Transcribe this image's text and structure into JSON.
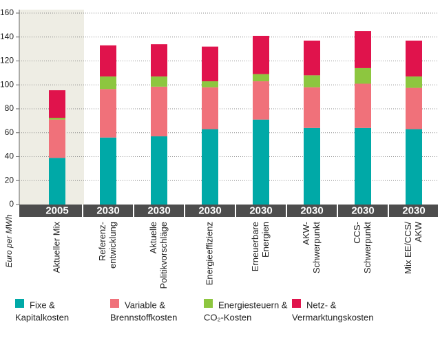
{
  "chart_data": {
    "type": "stacked_bar",
    "y_axis_label": "Euro per MWh",
    "years": [
      "2005",
      "2030",
      "2030",
      "2030",
      "2030",
      "2030",
      "2030",
      "2030"
    ],
    "categories": [
      [
        "Aktueller Mix"
      ],
      [
        "Referenz-",
        "entwicklung"
      ],
      [
        "Aktuelle",
        "Politikvorschläge"
      ],
      [
        "Energieeffizienz"
      ],
      [
        "Erneuerbare",
        "Energien"
      ],
      [
        "AKW-",
        "Schwerpunkt"
      ],
      [
        "CCS-",
        "Schwerpunkt"
      ],
      [
        "Mix EE/CCS/",
        "AKW"
      ]
    ],
    "series": [
      {
        "name": [
          "Fixe &",
          "Kapitalkosten"
        ],
        "color": "#00a9a7",
        "values": [
          39,
          56,
          57,
          63,
          71,
          64,
          64,
          63
        ]
      },
      {
        "name": [
          "Variable &",
          "Brennstoffkosten"
        ],
        "color": "#f0717a",
        "values": [
          32,
          40.5,
          41.5,
          35,
          32,
          34,
          37,
          34.5
        ]
      },
      {
        "name": [
          "Energiesteuern &",
          "CO₂-Kosten"
        ],
        "color": "#8dc63f",
        "values": [
          1.5,
          10.5,
          8.5,
          5,
          6,
          10,
          13,
          9.5
        ]
      },
      {
        "name": [
          "Netz- &",
          "Vermarktungskosten"
        ],
        "color": "#e0134c",
        "values": [
          23,
          26,
          27,
          29,
          32,
          29,
          31,
          30
        ]
      }
    ],
    "ylim": [
      0,
      160
    ],
    "yticks": [
      0,
      20,
      40,
      60,
      80,
      100,
      120,
      140,
      160
    ],
    "grid": true
  }
}
